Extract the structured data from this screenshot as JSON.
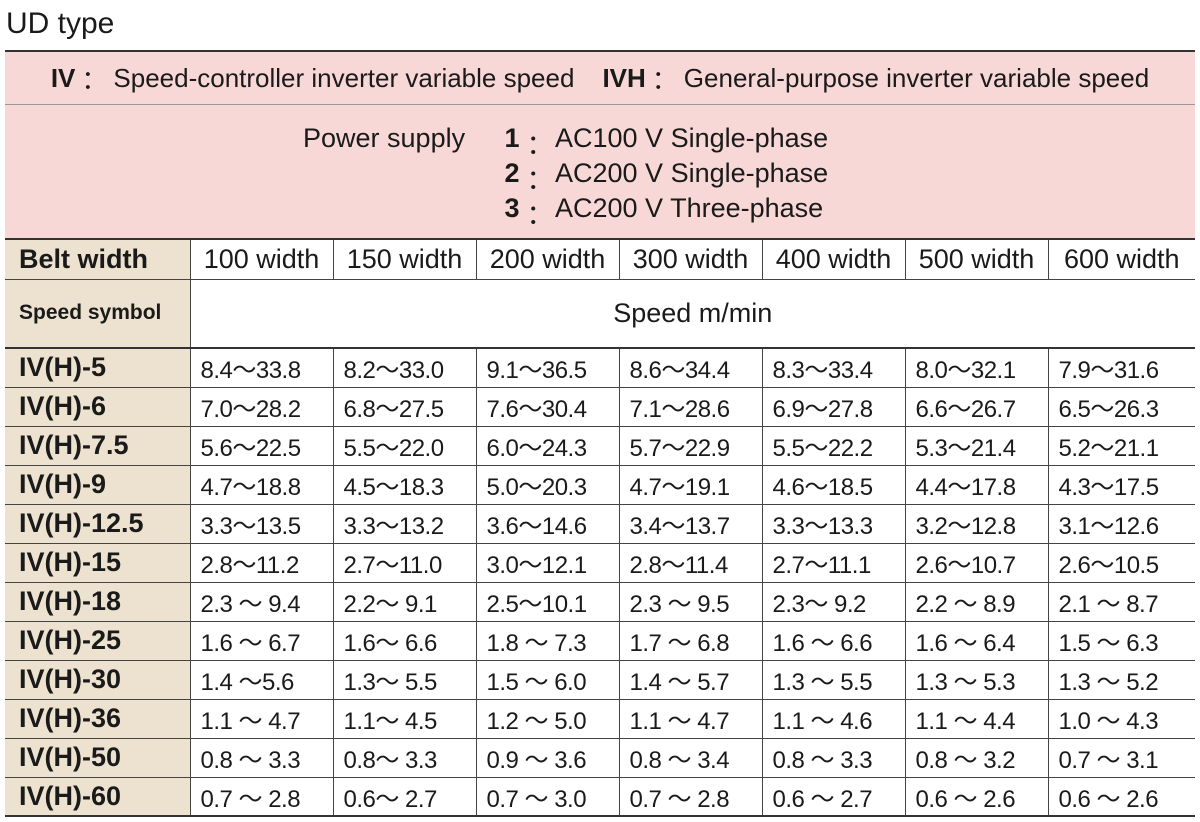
{
  "title": "UD type",
  "banner": {
    "iv_code": "IV",
    "iv_desc": "Speed-controller inverter variable speed",
    "ivh_code": "IVH",
    "ivh_desc": "General-purpose inverter variable speed",
    "separator": "："
  },
  "power_supply": {
    "label": "Power supply",
    "options": [
      {
        "num": "1",
        "desc": "AC100 V Single-phase"
      },
      {
        "num": "2",
        "desc": "AC200 V Single-phase"
      },
      {
        "num": "3",
        "desc": "AC200 V Three-phase"
      }
    ]
  },
  "table": {
    "belt_width_label": "Belt width",
    "widths": [
      "100 width",
      "150 width",
      "200 width",
      "300 width",
      "400 width",
      "500 width",
      "600 width"
    ],
    "speed_symbol_label": "Speed symbol",
    "speed_unit_label": "Speed m/min",
    "rows": [
      {
        "symbol": "IV(H)-5",
        "values": [
          "8.4～33.8",
          "8.2～33.0",
          "9.1～36.5",
          "8.6～34.4",
          "8.3～33.4",
          "8.0～32.1",
          "7.9～31.6"
        ]
      },
      {
        "symbol": "IV(H)-6",
        "values": [
          "7.0～28.2",
          "6.8～27.5",
          "7.6～30.4",
          "7.1～28.6",
          "6.9～27.8",
          "6.6～26.7",
          "6.5～26.3"
        ]
      },
      {
        "symbol": "IV(H)-7.5",
        "values": [
          "5.6～22.5",
          "5.5～22.0",
          "6.0～24.3",
          "5.7～22.9",
          "5.5～22.2",
          "5.3～21.4",
          "5.2～21.1"
        ]
      },
      {
        "symbol": "IV(H)-9",
        "values": [
          "4.7～18.8",
          "4.5～18.3",
          "5.0～20.3",
          "4.7～19.1",
          "4.6～18.5",
          "4.4～17.8",
          "4.3～17.5"
        ]
      },
      {
        "symbol": "IV(H)-12.5",
        "values": [
          "3.3～13.5",
          "3.3～13.2",
          "3.6～14.6",
          "3.4～13.7",
          "3.3～13.3",
          "3.2～12.8",
          "3.1～12.6"
        ]
      },
      {
        "symbol": "IV(H)-15",
        "values": [
          "2.8～11.2",
          "2.7～11.0",
          "3.0～12.1",
          "2.8～11.4",
          "2.7～11.1",
          "2.6～10.7",
          "2.6～10.5"
        ]
      },
      {
        "symbol": "IV(H)-18",
        "values": [
          "2.3 ～ 9.4",
          "2.2～ 9.1",
          "2.5～10.1",
          "2.3 ～ 9.5",
          "2.3～ 9.2",
          "2.2 ～ 8.9",
          "2.1 ～ 8.7"
        ]
      },
      {
        "symbol": "IV(H)-25",
        "values": [
          "1.6 ～ 6.7",
          "1.6～ 6.6",
          "1.8 ～ 7.3",
          "1.7 ～ 6.8",
          "1.6 ～ 6.6",
          "1.6 ～ 6.4",
          "1.5 ～ 6.3"
        ]
      },
      {
        "symbol": "IV(H)-30",
        "values": [
          "1.4 ～5.6",
          "1.3～ 5.5",
          "1.5 ～ 6.0",
          "1.4 ～ 5.7",
          "1.3 ～ 5.5",
          "1.3 ～ 5.3",
          "1.3 ～ 5.2"
        ]
      },
      {
        "symbol": "IV(H)-36",
        "values": [
          "1.1 ～ 4.7",
          "1.1～ 4.5",
          "1.2 ～ 5.0",
          "1.1 ～ 4.7",
          "1.1 ～ 4.6",
          "1.1 ～ 4.4",
          "1.0 ～ 4.3"
        ]
      },
      {
        "symbol": "IV(H)-50",
        "values": [
          "0.8 ～ 3.3",
          "0.8～ 3.3",
          "0.9 ～ 3.6",
          "0.8 ～ 3.4",
          "0.8 ～ 3.3",
          "0.8 ～ 3.2",
          "0.7 ～ 3.1"
        ]
      },
      {
        "symbol": "IV(H)-60",
        "values": [
          "0.7 ～ 2.8",
          "0.6～ 2.7",
          "0.7 ～ 3.0",
          "0.7 ～ 2.8",
          "0.6 ～ 2.7",
          "0.6 ～ 2.6",
          "0.6 ～ 2.6"
        ]
      }
    ]
  }
}
